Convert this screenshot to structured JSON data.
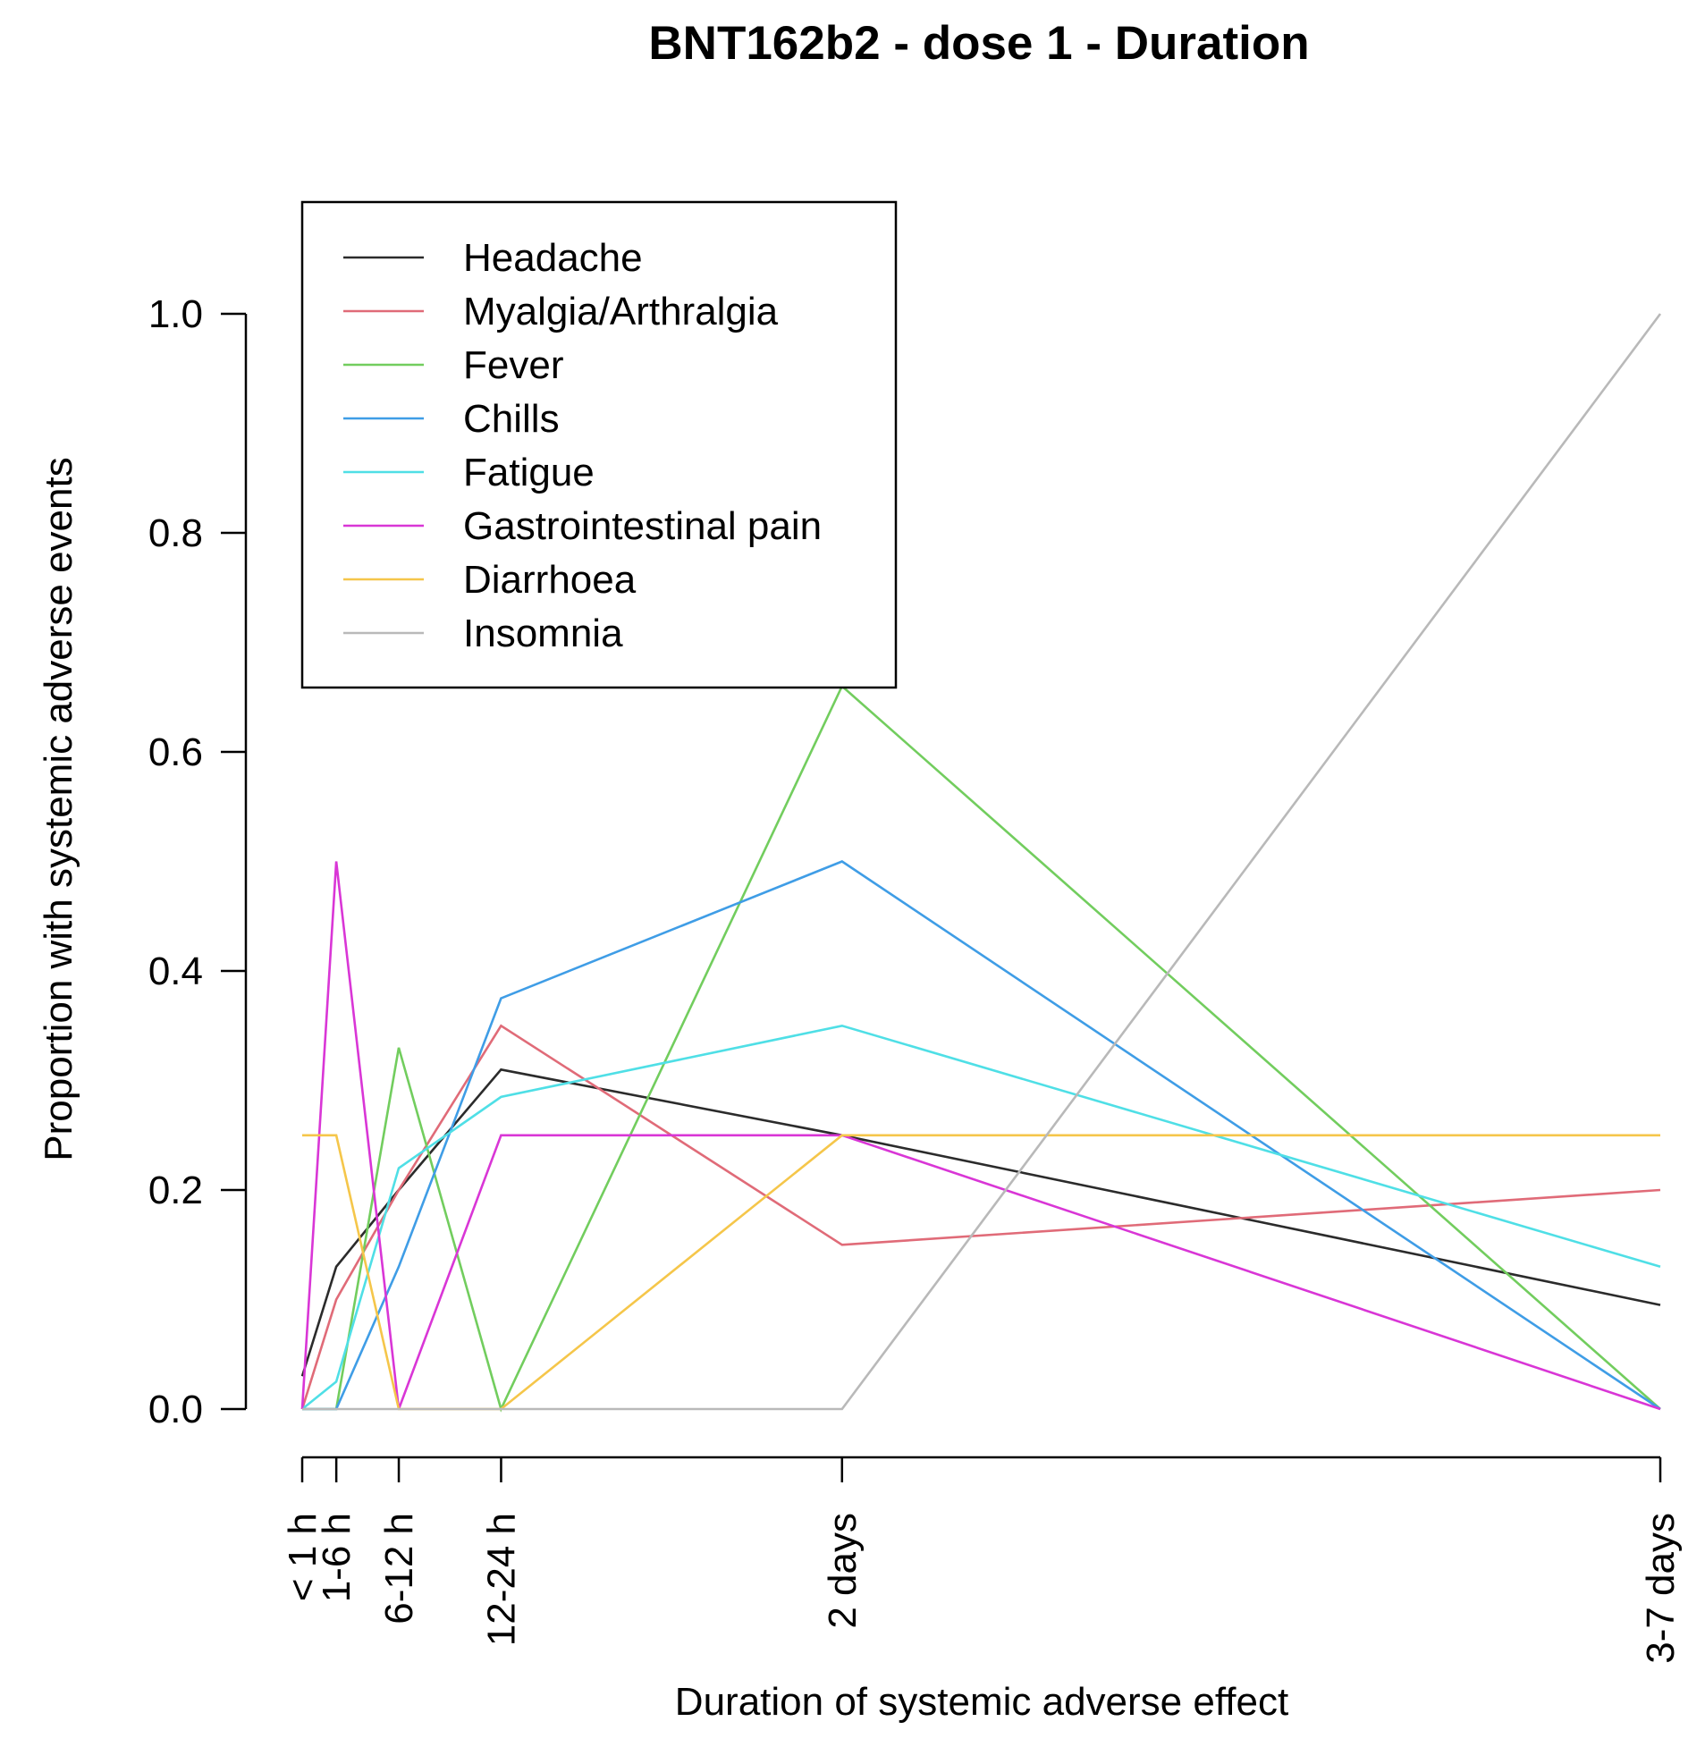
{
  "chart_data": {
    "type": "line",
    "title": "BNT162b2 - dose 1 - Duration",
    "xlabel": "Duration of systemic adverse effect",
    "ylabel": "Proportion with systemic adverse events",
    "categories": [
      "< 1 h",
      "1-6 h",
      "6-12 h",
      "12-24 h",
      "2 days",
      "3-7 days"
    ],
    "x": [
      0.5,
      3.5,
      9,
      18,
      48,
      120
    ],
    "xlim": [
      0.5,
      120
    ],
    "ylim": [
      0,
      1
    ],
    "yticks": [
      0.0,
      0.2,
      0.4,
      0.6,
      0.8,
      1.0
    ],
    "ytick_labels": [
      "0.0",
      "0.2",
      "0.4",
      "0.6",
      "0.8",
      "1.0"
    ],
    "grid": false,
    "legend_position": "top-left",
    "series": [
      {
        "name": "Headache",
        "color": "#2b2b2b",
        "values": [
          0.03,
          0.13,
          0.2,
          0.31,
          0.25,
          0.095
        ]
      },
      {
        "name": "Myalgia/Arthralgia",
        "color": "#e06b78",
        "values": [
          0.0,
          0.1,
          0.2,
          0.35,
          0.15,
          0.2
        ]
      },
      {
        "name": "Fever",
        "color": "#72cd5e",
        "values": [
          0.0,
          0.0,
          0.33,
          0.0,
          0.66,
          0.0
        ]
      },
      {
        "name": "Chills",
        "color": "#3f9de6",
        "values": [
          0.0,
          0.0,
          0.13,
          0.375,
          0.5,
          0.0
        ]
      },
      {
        "name": "Fatigue",
        "color": "#4fdfe6",
        "values": [
          0.0,
          0.025,
          0.22,
          0.285,
          0.35,
          0.13
        ]
      },
      {
        "name": "Gastrointestinal pain",
        "color": "#d936d6",
        "values": [
          0.0,
          0.5,
          0.0,
          0.25,
          0.25,
          0.0
        ]
      },
      {
        "name": "Diarrhoea",
        "color": "#f5c64a",
        "values": [
          0.25,
          0.25,
          0.0,
          0.0,
          0.25,
          0.25
        ]
      },
      {
        "name": "Insomnia",
        "color": "#b9b9b9",
        "values": [
          0.0,
          0.0,
          0.0,
          0.0,
          0.0,
          1.0
        ]
      }
    ]
  }
}
